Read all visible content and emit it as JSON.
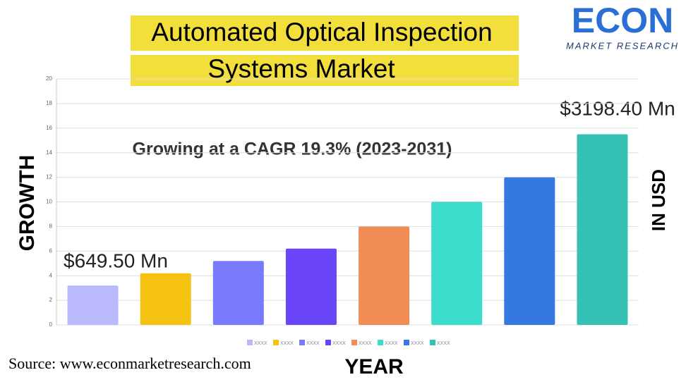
{
  "chart_data": {
    "type": "bar",
    "title": [
      "Automated Optical Inspection",
      "Systems Market"
    ],
    "logo": {
      "name": "ECON",
      "tagline": "MARKET RESEARCH"
    },
    "subtitle": "Growing at a CAGR 19.3% (2023-2031)",
    "annotations": [
      "$649.50 Mn",
      "$3198.40 Mn"
    ],
    "y_label": "GROWTH",
    "y2_label": "IN USD",
    "x_label": "YEAR",
    "source": "Source: www.econmarketresearch.com",
    "categories": [
      null,
      null,
      null,
      null,
      null,
      null,
      null,
      null
    ],
    "values": [
      3.2,
      4.2,
      5.2,
      6.2,
      8,
      10,
      12,
      15.5
    ],
    "colors": [
      "#b9b9fb",
      "#f5c211",
      "#7a7aff",
      "#6b45fa",
      "#f28c55",
      "#3bdccb",
      "#3478e0",
      "#35c2b5"
    ],
    "legend": [
      "XXXX",
      "XXXX",
      "XXXX",
      "XXXX",
      "XXXX",
      "XXXX",
      "XXXX",
      "XXXX"
    ],
    "ylim": [
      0,
      20
    ],
    "yticks": [
      0,
      2,
      4,
      6,
      8,
      10,
      12,
      14,
      16,
      18,
      20
    ],
    "grid": true
  }
}
